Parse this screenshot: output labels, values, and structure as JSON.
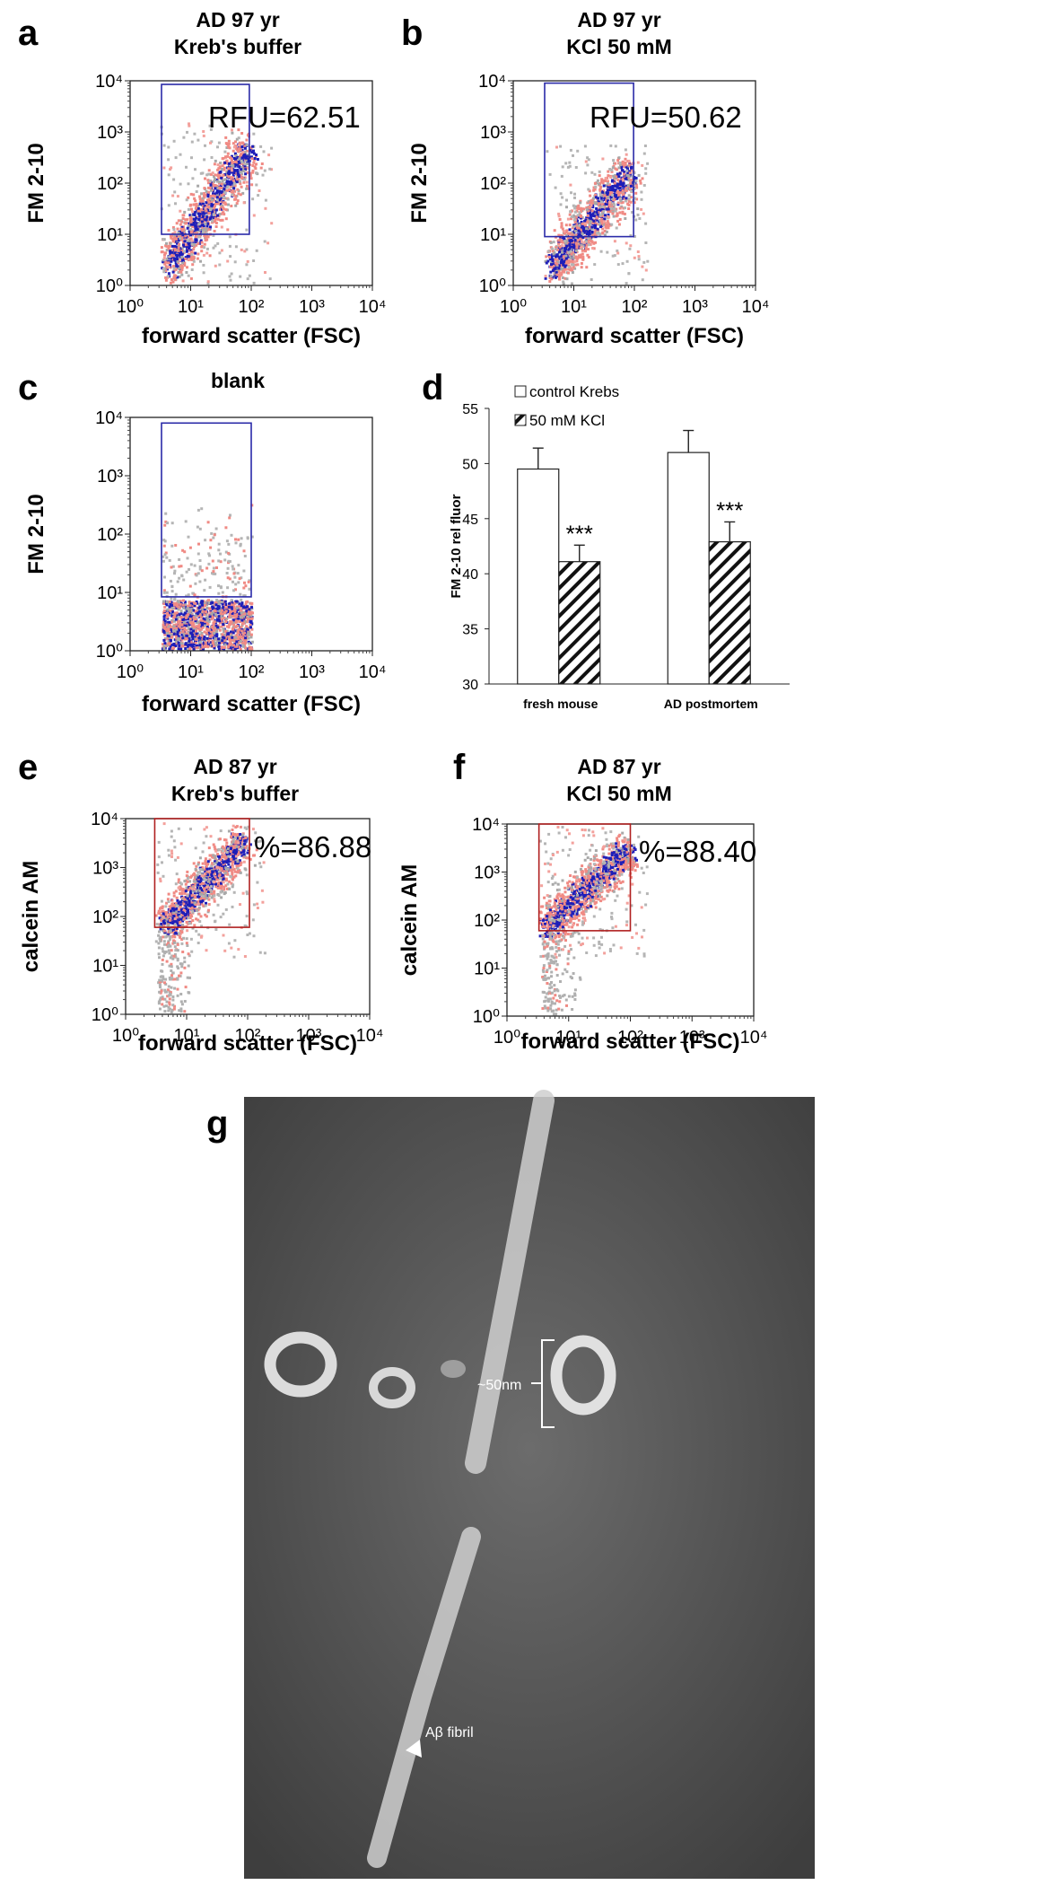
{
  "chart_data": [
    {
      "type": "flow-scatter",
      "panel_label": "a",
      "title": "AD 97 yr",
      "subtitle": "Kreb's buffer",
      "xlabel": "forward scatter (FSC)",
      "ylabel": "FM 2-10",
      "log_scale": true,
      "xlim": [
        1,
        10000
      ],
      "ylim": [
        1,
        10000
      ],
      "xticks": [
        {
          "value": 1,
          "label": "10⁰"
        },
        {
          "value": 10,
          "label": "10¹"
        },
        {
          "value": 100,
          "label": "10²"
        },
        {
          "value": 1000,
          "label": "10³"
        },
        {
          "value": 10000,
          "label": "10⁴"
        }
      ],
      "yticks": [
        {
          "value": 1,
          "label": "10⁰"
        },
        {
          "value": 10,
          "label": "10¹"
        },
        {
          "value": 100,
          "label": "10²"
        },
        {
          "value": 1000,
          "label": "10³"
        },
        {
          "value": 10000,
          "label": "10⁴"
        }
      ],
      "gate": {
        "x": [
          3.3,
          93
        ],
        "y": [
          10,
          8500
        ],
        "color": "#2a2aa8"
      },
      "annotation": "RFU=62.51"
    },
    {
      "type": "flow-scatter",
      "panel_label": "b",
      "title": "AD 97 yr",
      "subtitle": "KCl 50 mM",
      "xlabel": "forward scatter (FSC)",
      "ylabel": "FM 2-10",
      "log_scale": true,
      "xlim": [
        1,
        10000
      ],
      "ylim": [
        1,
        10000
      ],
      "xticks": [
        {
          "value": 1,
          "label": "10⁰"
        },
        {
          "value": 10,
          "label": "10¹"
        },
        {
          "value": 100,
          "label": "10²"
        },
        {
          "value": 1000,
          "label": "10³"
        },
        {
          "value": 10000,
          "label": "10⁴"
        }
      ],
      "yticks": [
        {
          "value": 1,
          "label": "10⁰"
        },
        {
          "value": 10,
          "label": "10¹"
        },
        {
          "value": 100,
          "label": "10²"
        },
        {
          "value": 1000,
          "label": "10³"
        },
        {
          "value": 10000,
          "label": "10⁴"
        }
      ],
      "gate": {
        "x": [
          3.3,
          97
        ],
        "y": [
          9,
          9000
        ],
        "color": "#2a2aa8"
      },
      "annotation": "RFU=50.62"
    },
    {
      "type": "flow-scatter",
      "panel_label": "c",
      "title": "blank",
      "xlabel": "forward scatter (FSC)",
      "ylabel": "FM 2-10",
      "log_scale": true,
      "xlim": [
        1,
        10000
      ],
      "ylim": [
        1,
        10000
      ],
      "xticks": [
        {
          "value": 1,
          "label": "10⁰"
        },
        {
          "value": 10,
          "label": "10¹"
        },
        {
          "value": 100,
          "label": "10²"
        },
        {
          "value": 1000,
          "label": "10³"
        },
        {
          "value": 10000,
          "label": "10⁴"
        }
      ],
      "yticks": [
        {
          "value": 1,
          "label": "10⁰"
        },
        {
          "value": 10,
          "label": "10¹"
        },
        {
          "value": 100,
          "label": "10²"
        },
        {
          "value": 1000,
          "label": "10³"
        },
        {
          "value": 10000,
          "label": "10⁴"
        }
      ],
      "gate": {
        "x": [
          3.3,
          100
        ],
        "y": [
          8.4,
          8000
        ],
        "color": "#2a2aa8"
      }
    },
    {
      "type": "bar",
      "panel_label": "d",
      "ylabel": "FM 2-10 rel fluor",
      "categories": [
        "fresh mouse",
        "AD postmortem"
      ],
      "series": [
        {
          "name": "control Krebs",
          "color": "#ffffff",
          "pattern": "none",
          "values": [
            49.5,
            51.0
          ],
          "errors": [
            1.9,
            2.0
          ]
        },
        {
          "name": "50 mM KCl",
          "color": "#ffffff",
          "pattern": "hatch",
          "values": [
            41.1,
            42.9
          ],
          "errors": [
            1.5,
            1.8
          ],
          "annotations": [
            "***",
            "***"
          ]
        }
      ],
      "ylim": [
        30,
        55
      ],
      "yticks": [
        30,
        35,
        40,
        45,
        50,
        55
      ]
    },
    {
      "type": "flow-scatter",
      "panel_label": "e",
      "title": "AD 87 yr",
      "subtitle": "Kreb's buffer",
      "xlabel": "forward scatter (FSC)",
      "ylabel": "calcein AM",
      "log_scale": true,
      "xlim": [
        1,
        10000
      ],
      "ylim": [
        1,
        10000
      ],
      "xticks": [
        {
          "value": 1,
          "label": "10⁰"
        },
        {
          "value": 10,
          "label": "10¹"
        },
        {
          "value": 100,
          "label": "10²"
        },
        {
          "value": 1000,
          "label": "10³"
        },
        {
          "value": 10000,
          "label": "10⁴"
        }
      ],
      "yticks": [
        {
          "value": 1,
          "label": "10⁰"
        },
        {
          "value": 10,
          "label": "10¹"
        },
        {
          "value": 100,
          "label": "10²"
        },
        {
          "value": 1000,
          "label": "10³"
        },
        {
          "value": 10000,
          "label": "10⁴"
        }
      ],
      "gate": {
        "x": [
          3.0,
          107
        ],
        "y": [
          60,
          10000
        ],
        "color": "#b02020"
      },
      "annotation": "%=86.88"
    },
    {
      "type": "flow-scatter",
      "panel_label": "f",
      "title": "AD 87 yr",
      "subtitle": "KCl 50 mM",
      "xlabel": "forward scatter (FSC)",
      "ylabel": "calcein AM",
      "log_scale": true,
      "xlim": [
        1,
        10000
      ],
      "ylim": [
        1,
        10000
      ],
      "xticks": [
        {
          "value": 1,
          "label": "10⁰"
        },
        {
          "value": 10,
          "label": "10¹"
        },
        {
          "value": 100,
          "label": "10²"
        },
        {
          "value": 1000,
          "label": "10³"
        },
        {
          "value": 10000,
          "label": "10⁴"
        }
      ],
      "yticks": [
        {
          "value": 1,
          "label": "10⁰"
        },
        {
          "value": 10,
          "label": "10¹"
        },
        {
          "value": 100,
          "label": "10²"
        },
        {
          "value": 1000,
          "label": "10³"
        },
        {
          "value": 10000,
          "label": "10⁴"
        }
      ],
      "gate": {
        "x": [
          3.3,
          100
        ],
        "y": [
          60,
          10000
        ],
        "color": "#b02020"
      },
      "annotation": "%=88.40"
    }
  ],
  "image": {
    "panel_label": "g",
    "annotations": [
      "~50nm",
      "Aβ fibril"
    ]
  }
}
